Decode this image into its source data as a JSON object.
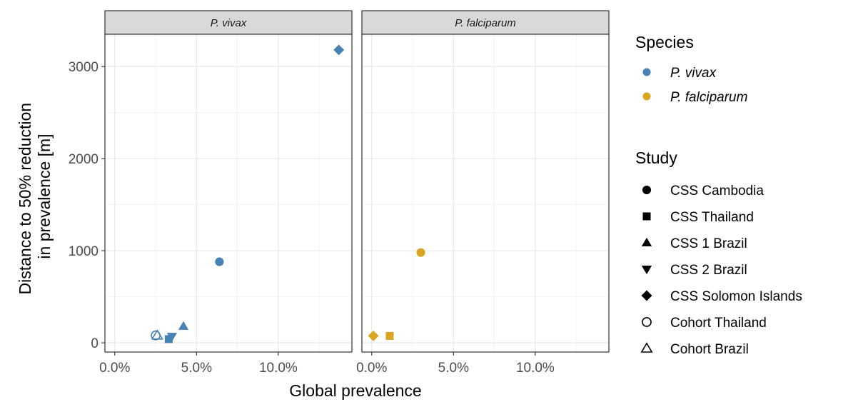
{
  "chart_data": {
    "type": "scatter",
    "xlabel": "Global prevalence",
    "ylabel": "Distance to 50% reduction\nin prevalence [m]",
    "xlim": [
      -0.006,
      0.145
    ],
    "ylim": [
      -100,
      3350
    ],
    "x_ticks": [
      0,
      0.05,
      0.1
    ],
    "x_tick_labels": [
      "0.0%",
      "5.0%",
      "10.0%"
    ],
    "y_ticks": [
      0,
      1000,
      2000,
      3000
    ],
    "y_tick_labels": [
      "0",
      "1000",
      "2000",
      "3000"
    ],
    "grid": true,
    "facets": [
      {
        "label": "P. vivax",
        "species": "P. vivax",
        "points": [
          {
            "study": "CSS Solomon Islands",
            "x": 0.137,
            "y": 3180
          },
          {
            "study": "CSS Cambodia",
            "x": 0.064,
            "y": 880
          },
          {
            "study": "CSS 1 Brazil",
            "x": 0.042,
            "y": 180
          },
          {
            "study": "CSS 2 Brazil",
            "x": 0.035,
            "y": 70
          },
          {
            "study": "CSS Thailand",
            "x": 0.033,
            "y": 40
          },
          {
            "study": "Cohort Thailand",
            "x": 0.025,
            "y": 80
          },
          {
            "study": "Cohort Brazil",
            "x": 0.026,
            "y": 80
          }
        ]
      },
      {
        "label": "P. falciparum",
        "species": "P. falciparum",
        "points": [
          {
            "study": "CSS Cambodia",
            "x": 0.03,
            "y": 980
          },
          {
            "study": "CSS Thailand",
            "x": 0.011,
            "y": 75
          },
          {
            "study": "CSS Solomon Islands",
            "x": 0.001,
            "y": 75
          }
        ]
      }
    ],
    "legend": {
      "placement": "right",
      "species_title": "Species",
      "species": [
        {
          "name": "P. vivax",
          "color": "#4682b4"
        },
        {
          "name": "P. falciparum",
          "color": "#daa520"
        }
      ],
      "study_title": "Study",
      "studies": [
        {
          "name": "CSS Cambodia",
          "shape": "circle-filled"
        },
        {
          "name": "CSS Thailand",
          "shape": "square-filled"
        },
        {
          "name": "CSS 1 Brazil",
          "shape": "triangle-up-filled"
        },
        {
          "name": "CSS 2 Brazil",
          "shape": "triangle-down-filled"
        },
        {
          "name": "CSS Solomon Islands",
          "shape": "diamond-filled"
        },
        {
          "name": "Cohort Thailand",
          "shape": "circle-open"
        },
        {
          "name": "Cohort Brazil",
          "shape": "triangle-up-open"
        }
      ]
    }
  }
}
